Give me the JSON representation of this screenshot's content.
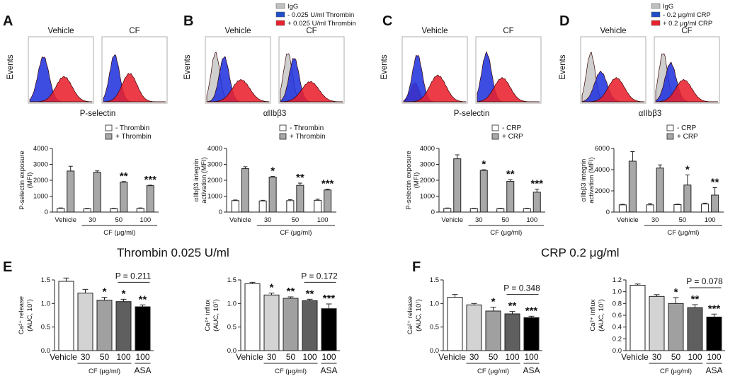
{
  "panel_labels": {
    "A": "A",
    "B": "B",
    "C": "C",
    "D": "D",
    "E": "E",
    "F": "F"
  },
  "sections": {
    "thrombin": "Thrombin 0.025 U/ml",
    "crp": "CRP 0.2 μg/ml"
  },
  "flow_panels": [
    {
      "id": "A",
      "panel_vehicle": "Vehicle",
      "panel_cf": "CF",
      "y_label": "Events",
      "x_label": "P-selectin",
      "legend": [],
      "vehicle_peaks": [
        {
          "pos": 0.22,
          "h": 0.72,
          "w": 0.09,
          "color": "#2233dd"
        },
        {
          "pos": 0.55,
          "h": 0.4,
          "w": 0.13,
          "color": "#e8212e"
        }
      ],
      "cf_peaks": [
        {
          "pos": 0.18,
          "h": 0.75,
          "w": 0.08,
          "color": "#2233dd"
        },
        {
          "pos": 0.42,
          "h": 0.45,
          "w": 0.12,
          "color": "#e8212e"
        }
      ]
    },
    {
      "id": "B",
      "panel_vehicle": "Vehicle",
      "panel_cf": "CF",
      "y_label": "Events",
      "x_label": "αIIbβ3",
      "legend": [
        {
          "label": "IgG",
          "color": "#c0c0c0"
        },
        {
          "label": "- 0.025 U/ml Thrombin",
          "color": "#1f4ec8"
        },
        {
          "label": "+ 0.025 U/ml Thrombin",
          "color": "#e8212e"
        }
      ],
      "vehicle_peaks": [
        {
          "pos": 0.14,
          "h": 0.78,
          "w": 0.07,
          "color": "#c8c8c8"
        },
        {
          "pos": 0.28,
          "h": 0.72,
          "w": 0.08,
          "color": "#2233dd"
        },
        {
          "pos": 0.55,
          "h": 0.35,
          "w": 0.14,
          "color": "#e8212e"
        }
      ],
      "cf_peaks": [
        {
          "pos": 0.12,
          "h": 0.78,
          "w": 0.07,
          "color": "#c8c8c8"
        },
        {
          "pos": 0.22,
          "h": 0.7,
          "w": 0.08,
          "color": "#2233dd"
        },
        {
          "pos": 0.48,
          "h": 0.32,
          "w": 0.14,
          "color": "#e8212e"
        }
      ]
    },
    {
      "id": "C",
      "panel_vehicle": "Vehicle",
      "panel_cf": "CF",
      "y_label": "Events",
      "x_label": "P-selectin",
      "legend": [],
      "vehicle_peaks": [
        {
          "pos": 0.18,
          "h": 0.3,
          "w": 0.07,
          "color": "#e8212e"
        },
        {
          "pos": 0.22,
          "h": 0.75,
          "w": 0.08,
          "color": "#2233dd"
        },
        {
          "pos": 0.55,
          "h": 0.42,
          "w": 0.13,
          "color": "#e8212e"
        }
      ],
      "cf_peaks": [
        {
          "pos": 0.15,
          "h": 0.78,
          "w": 0.08,
          "color": "#2233dd"
        },
        {
          "pos": 0.4,
          "h": 0.38,
          "w": 0.13,
          "color": "#e8212e"
        }
      ]
    },
    {
      "id": "D",
      "panel_vehicle": "Vehicle",
      "panel_cf": "CF",
      "y_label": "Events",
      "x_label": "αIIbβ3",
      "legend": [
        {
          "label": "IgG",
          "color": "#c0c0c0"
        },
        {
          "label": "- 0.2 μg/ml CRP",
          "color": "#1f4ec8"
        },
        {
          "label": "+ 0.2 μg/ml CRP",
          "color": "#e8212e"
        }
      ],
      "vehicle_peaks": [
        {
          "pos": 0.14,
          "h": 0.78,
          "w": 0.07,
          "color": "#c8c8c8"
        },
        {
          "pos": 0.3,
          "h": 0.48,
          "w": 0.1,
          "color": "#2233dd"
        },
        {
          "pos": 0.55,
          "h": 0.38,
          "w": 0.13,
          "color": "#e8212e"
        }
      ],
      "cf_peaks": [
        {
          "pos": 0.12,
          "h": 0.78,
          "w": 0.07,
          "color": "#c8c8c8"
        },
        {
          "pos": 0.24,
          "h": 0.62,
          "w": 0.09,
          "color": "#2233dd"
        },
        {
          "pos": 0.45,
          "h": 0.35,
          "w": 0.13,
          "color": "#e8212e"
        }
      ]
    }
  ],
  "chart_data": [
    {
      "id": "A-bar",
      "type": "bar",
      "ylabel": [
        "P-selectin exposure",
        "(MFI)"
      ],
      "ylim": [
        0,
        4000
      ],
      "yticks": [
        "0",
        "1000",
        "2000",
        "3000",
        "4000"
      ],
      "categories": [
        "Vehicle",
        "30",
        "50",
        "100"
      ],
      "xlabel": "CF (μg/ml)",
      "legend": [
        "- Thrombin",
        "+ Thrombin"
      ],
      "series": [
        {
          "name": "- Thrombin",
          "values": [
            230,
            210,
            220,
            230
          ],
          "errors": [
            30,
            25,
            25,
            30
          ]
        },
        {
          "name": "+ Thrombin",
          "values": [
            2580,
            2500,
            1880,
            1660
          ],
          "errors": [
            300,
            90,
            40,
            30
          ]
        }
      ],
      "stars": [
        "",
        "",
        "**",
        "***"
      ]
    },
    {
      "id": "B-bar",
      "type": "bar",
      "ylabel": [
        "αIIbβ3 integrin",
        "activation (MFI)"
      ],
      "ylim": [
        0,
        4000
      ],
      "yticks": [
        "0",
        "1000",
        "2000",
        "3000",
        "4000"
      ],
      "categories": [
        "Vehicle",
        "30",
        "50",
        "100"
      ],
      "xlabel": "CF (μg/ml)",
      "legend": [
        "- Thrombin",
        "+ Thrombin"
      ],
      "series": [
        {
          "name": "- Thrombin",
          "values": [
            720,
            700,
            720,
            740
          ],
          "errors": [
            40,
            40,
            60,
            70
          ]
        },
        {
          "name": "+ Thrombin",
          "values": [
            2730,
            2200,
            1680,
            1390
          ],
          "errors": [
            120,
            40,
            140,
            50
          ]
        }
      ],
      "stars": [
        "",
        "*",
        "**",
        "***"
      ]
    },
    {
      "id": "C-bar",
      "type": "bar",
      "ylabel": [
        "P-selectin exposure",
        "(MFI)"
      ],
      "ylim": [
        0,
        4000
      ],
      "yticks": [
        "0",
        "1000",
        "2000",
        "3000",
        "4000"
      ],
      "categories": [
        "Vehicle",
        "30",
        "50",
        "100"
      ],
      "xlabel": "CF (μg/ml)",
      "legend": [
        "- CRP",
        "+ CRP"
      ],
      "series": [
        {
          "name": "- CRP",
          "values": [
            230,
            220,
            220,
            220
          ],
          "errors": [
            25,
            25,
            25,
            25
          ]
        },
        {
          "name": "+ CRP",
          "values": [
            3350,
            2620,
            1930,
            1250
          ],
          "errors": [
            250,
            40,
            110,
            190
          ]
        }
      ],
      "stars": [
        "",
        "*",
        "**",
        "***"
      ]
    },
    {
      "id": "D-bar",
      "type": "bar",
      "ylabel": [
        "αIIbβ3 integrin",
        "activation (MFI)"
      ],
      "ylim": [
        0,
        6000
      ],
      "yticks": [
        "0",
        "2000",
        "4000",
        "6000"
      ],
      "categories": [
        "Vehicle",
        "30",
        "50",
        "100"
      ],
      "xlabel": "CF (μg/ml)",
      "legend": [
        "- CRP",
        "+ CRP"
      ],
      "series": [
        {
          "name": "- CRP",
          "values": [
            680,
            680,
            700,
            760
          ],
          "errors": [
            50,
            120,
            40,
            80
          ]
        },
        {
          "name": "+ CRP",
          "values": [
            4800,
            4150,
            2550,
            1600
          ],
          "errors": [
            900,
            300,
            950,
            700
          ]
        }
      ],
      "stars": [
        "",
        "",
        "*",
        "**"
      ]
    },
    {
      "id": "E-release",
      "type": "bar",
      "ylabel": [
        "Ca²⁺ release",
        "(AUC, 10⁷)"
      ],
      "ylim": [
        0,
        1.5
      ],
      "yticks": [
        "0.0",
        "0.5",
        "1.0",
        "1.5"
      ],
      "categories": [
        "Vehicle",
        "30",
        "50",
        "100",
        "100"
      ],
      "group_label": "CF (μg/ml)",
      "extra_label": "ASA",
      "values": [
        1.47,
        1.22,
        1.07,
        1.04,
        0.93
      ],
      "errors": [
        0.07,
        0.08,
        0.06,
        0.05,
        0.04
      ],
      "colors": [
        "#ffffff",
        "#d3d3d3",
        "#a0a0a0",
        "#5f5f5f",
        "#000000"
      ],
      "stars": [
        "",
        "",
        "*",
        "*",
        "**"
      ],
      "pvalue": "P = 0.211"
    },
    {
      "id": "E-influx",
      "type": "bar",
      "ylabel": [
        "Ca²⁺ influx",
        "(AUC, 10⁷)"
      ],
      "ylim": [
        0,
        1.5
      ],
      "yticks": [
        "0.0",
        "0.5",
        "1.0",
        "1.5"
      ],
      "categories": [
        "Vehicle",
        "30",
        "50",
        "100",
        "100"
      ],
      "group_label": "CF (μg/ml)",
      "extra_label": "ASA",
      "values": [
        1.42,
        1.18,
        1.11,
        1.06,
        0.89
      ],
      "errors": [
        0.03,
        0.04,
        0.03,
        0.03,
        0.1
      ],
      "colors": [
        "#ffffff",
        "#d3d3d3",
        "#a0a0a0",
        "#5f5f5f",
        "#000000"
      ],
      "stars": [
        "",
        "*",
        "**",
        "**",
        "***"
      ],
      "pvalue": "P = 0.172"
    },
    {
      "id": "F-release",
      "type": "bar",
      "ylabel": [
        "Ca²⁺ release",
        "(AUC, 10⁷)"
      ],
      "ylim": [
        0,
        1.5
      ],
      "yticks": [
        "0.0",
        "0.5",
        "1.0",
        "1.5"
      ],
      "categories": [
        "Vehicle",
        "30",
        "50",
        "100",
        "100"
      ],
      "group_label": "CF (μg/ml)",
      "extra_label": "ASA",
      "values": [
        1.13,
        0.97,
        0.84,
        0.78,
        0.7
      ],
      "errors": [
        0.06,
        0.03,
        0.08,
        0.05,
        0.03
      ],
      "colors": [
        "#ffffff",
        "#d3d3d3",
        "#a0a0a0",
        "#5f5f5f",
        "#000000"
      ],
      "stars": [
        "",
        "",
        "*",
        "**",
        "***"
      ],
      "pvalue": "P = 0.348"
    },
    {
      "id": "F-influx",
      "type": "bar",
      "ylabel": [
        "Ca²⁺ influx",
        "(AUC, 10⁷)"
      ],
      "ylim": [
        0,
        1.2
      ],
      "yticks": [
        "0.0",
        "0.2",
        "0.4",
        "0.6",
        "0.8",
        "1.0",
        "1.2"
      ],
      "categories": [
        "Vehicle",
        "30",
        "50",
        "100",
        "100"
      ],
      "group_label": "CF (μg/ml)",
      "extra_label": "ASA",
      "values": [
        1.11,
        0.92,
        0.8,
        0.73,
        0.57
      ],
      "errors": [
        0.02,
        0.03,
        0.1,
        0.05,
        0.05
      ],
      "colors": [
        "#ffffff",
        "#d3d3d3",
        "#a0a0a0",
        "#5f5f5f",
        "#000000"
      ],
      "stars": [
        "",
        "",
        "*",
        "**",
        "***"
      ],
      "pvalue": "P = 0.078"
    }
  ]
}
